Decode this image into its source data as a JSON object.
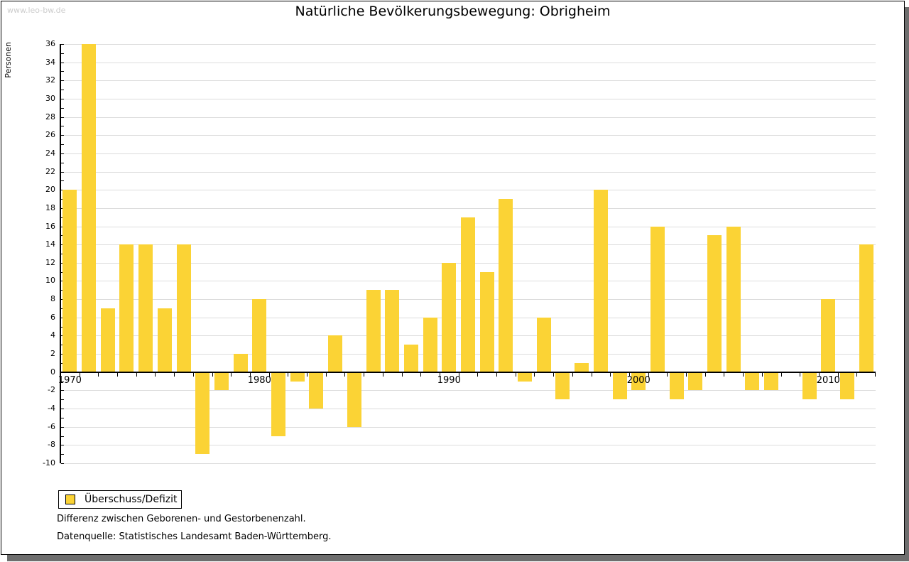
{
  "watermark": "www.leo-bw.de",
  "header": {
    "title": "Natürliche Bevölkerungsbewegung: Obrigheim"
  },
  "y_axis": {
    "label": "Personen"
  },
  "legend": {
    "label": "Überschuss/Defizit"
  },
  "notes": {
    "definition": "Differenz zwischen Geborenen- und Gestorbenenzahl.",
    "source": "Datenquelle: Statistisches Landesamt Baden-Württemberg."
  },
  "colors": {
    "bar": "#FBD335",
    "gridline": "#DCDCDC",
    "axis": "#000000",
    "watermark": "#CCCCCC",
    "frame_shadow": "#6E6E6E"
  },
  "chart_data": {
    "type": "bar",
    "title": "Natürliche Bevölkerungsbewegung: Obrigheim",
    "xlabel": "",
    "ylabel": "Personen",
    "x": [
      1970,
      1971,
      1972,
      1973,
      1974,
      1975,
      1976,
      1977,
      1978,
      1979,
      1980,
      1981,
      1982,
      1983,
      1984,
      1985,
      1986,
      1987,
      1988,
      1989,
      1990,
      1991,
      1992,
      1993,
      1994,
      1995,
      1996,
      1997,
      1998,
      1999,
      2000,
      2001,
      2002,
      2003,
      2004,
      2005,
      2006,
      2007,
      2008,
      2009,
      2010,
      2011,
      2012
    ],
    "series": [
      {
        "name": "Überschuss/Defizit",
        "values": [
          20,
          36,
          7,
          14,
          14,
          7,
          14,
          -9,
          -2,
          2,
          8,
          -7,
          -1,
          -4,
          4,
          -6,
          9,
          9,
          3,
          6,
          12,
          17,
          11,
          19,
          -1,
          6,
          -3,
          1,
          20,
          -3,
          -2,
          16,
          -3,
          -2,
          15,
          16,
          -2,
          -2,
          0,
          -3,
          8,
          -3,
          14
        ]
      }
    ],
    "ylim": [
      -10,
      36
    ],
    "ytick_step": 2,
    "xticks_labeled": [
      1970,
      1980,
      1990,
      2000,
      2010
    ],
    "grid": true,
    "legend_position": "bottom-left",
    "bar_color": "#FBD335"
  }
}
